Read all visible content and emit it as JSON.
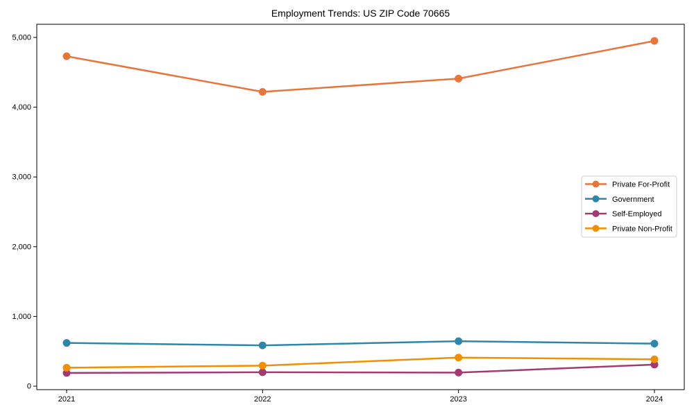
{
  "chart_data": {
    "type": "line",
    "title": "Employment Trends: US ZIP Code 70665",
    "x": [
      2021,
      2022,
      2023,
      2024
    ],
    "x_tick_labels": [
      "2021",
      "2022",
      "2023",
      "2024"
    ],
    "y_ticks": [
      0,
      1000,
      2000,
      3000,
      4000,
      5000
    ],
    "y_tick_labels": [
      "0",
      "1,000",
      "2,000",
      "3,000",
      "4,000",
      "5,000"
    ],
    "xlabel": "",
    "ylabel": "",
    "ylim": [
      0,
      5000
    ],
    "grid": false,
    "legend_position": "center right",
    "series": [
      {
        "name": "Private For-Profit",
        "color": "#E8743B",
        "values": [
          4730,
          4220,
          4410,
          4950
        ]
      },
      {
        "name": "Government",
        "color": "#2E86AB",
        "values": [
          620,
          585,
          645,
          610
        ]
      },
      {
        "name": "Self-Employed",
        "color": "#A23B72",
        "values": [
          190,
          200,
          195,
          310
        ]
      },
      {
        "name": "Private Non-Profit",
        "color": "#F18F01",
        "values": [
          265,
          295,
          410,
          385
        ]
      }
    ]
  }
}
